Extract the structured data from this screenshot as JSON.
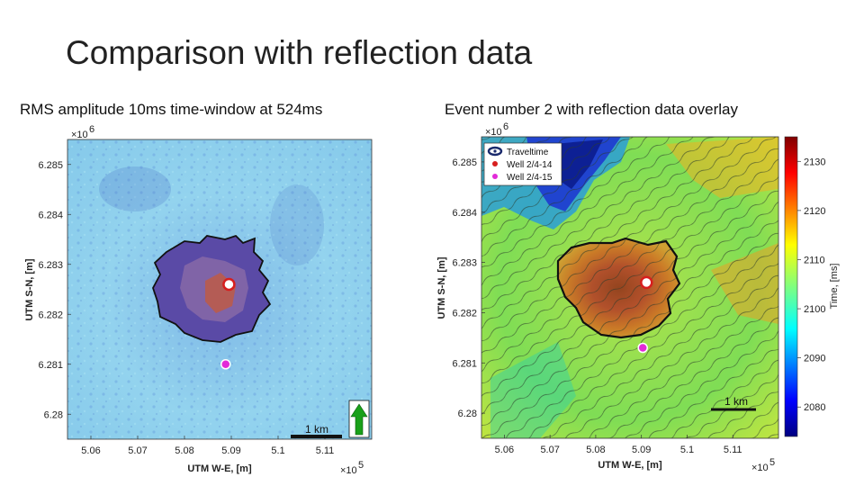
{
  "slide": {
    "title": "Comparison with reflection data"
  },
  "chart_data": [
    {
      "type": "heatmap",
      "title": "RMS amplitude 10ms time-window at 524ms",
      "xlabel": "UTM W-E, [m]",
      "ylabel": "UTM S-N, [m]",
      "x_multiplier": "×10",
      "x_exponent": "5",
      "y_multiplier": "×10",
      "y_exponent": "6",
      "x_ticks": [
        "5.06",
        "5.07",
        "5.08",
        "5.09",
        "5.1",
        "5.11"
      ],
      "y_ticks": [
        "6.285",
        "6.284",
        "6.283",
        "6.282",
        "6.281",
        "6.28"
      ],
      "x_values": [
        5.06,
        5.07,
        5.08,
        5.09,
        5.1,
        5.11
      ],
      "y_values": [
        6.285,
        6.284,
        6.283,
        6.282,
        6.281,
        6.28
      ],
      "xlim": [
        5.055,
        5.12
      ],
      "ylim": [
        6.2795,
        6.2855
      ],
      "scale_bar": "1 km",
      "markers": [
        {
          "name": "Well 2/4-14",
          "x": 5.0895,
          "y": 6.2826,
          "color": "#d71e1e"
        },
        {
          "name": "Well 2/4-15",
          "x": 5.0888,
          "y": 6.281,
          "color": "#e22ad8"
        }
      ],
      "colors": {
        "background": "#8fd3ec",
        "anomaly": "#4a3f98",
        "anomaly_core": "#c65a3a"
      }
    },
    {
      "type": "heatmap",
      "title": "Event number 2 with reflection data overlay",
      "xlabel": "UTM W-E, [m]",
      "ylabel": "UTM S-N, [m]",
      "x_multiplier": "×10",
      "x_exponent": "5",
      "y_multiplier": "×10",
      "y_exponent": "6",
      "x_ticks": [
        "5.06",
        "5.07",
        "5.08",
        "5.09",
        "5.1",
        "5.11"
      ],
      "y_ticks": [
        "6.285",
        "6.284",
        "6.283",
        "6.282",
        "6.281",
        "6.28"
      ],
      "x_values": [
        5.06,
        5.07,
        5.08,
        5.09,
        5.1,
        5.11
      ],
      "y_values": [
        6.285,
        6.284,
        6.283,
        6.282,
        6.281,
        6.28
      ],
      "xlim": [
        5.055,
        5.12
      ],
      "ylim": [
        6.2795,
        6.2855
      ],
      "colorbar": {
        "label": "Time, [ms]",
        "ticks": [
          "2130",
          "2120",
          "2110",
          "2100",
          "2090",
          "2080"
        ],
        "tick_values": [
          2130,
          2120,
          2110,
          2100,
          2090,
          2080
        ],
        "range": [
          2074,
          2135
        ],
        "colormap": "jet"
      },
      "legend": {
        "placement": "top-left",
        "entries": [
          {
            "label": "Traveltime",
            "color": "#1a2a6c"
          },
          {
            "label": "Well 2/4-14",
            "color": "#d71e1e"
          },
          {
            "label": "Well 2/4-15",
            "color": "#e22ad8"
          }
        ]
      },
      "scale_bar": "1 km",
      "markers": [
        {
          "name": "Well 2/4-14",
          "x": 5.0911,
          "y": 6.2826,
          "color": "#d71e1e"
        },
        {
          "name": "Well 2/4-15",
          "x": 5.0903,
          "y": 6.2813,
          "color": "#e22ad8"
        }
      ]
    }
  ]
}
